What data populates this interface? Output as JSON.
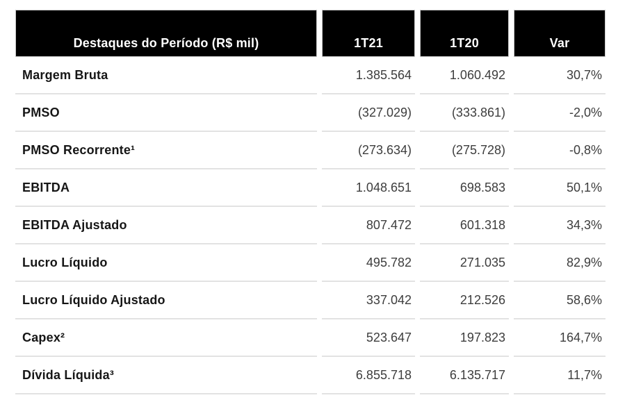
{
  "title": "Destaques do Período (R$ mil)",
  "colors": {
    "header_bg": "#000000",
    "header_text": "#ffffff",
    "label_text": "#161616",
    "value_text": "#3d3d3d",
    "divider": "#e2e2e2",
    "background": "#ffffff"
  },
  "chart_data": {
    "type": "table",
    "title": "Destaques do Período (R$ mil)",
    "columns": [
      "Destaques do Período (R$ mil)",
      "1T21",
      "1T20",
      "Var"
    ],
    "rows": [
      [
        "Margem Bruta",
        "1.385.564",
        "1.060.492",
        "30,7%"
      ],
      [
        "PMSO",
        "(327.029)",
        "(333.861)",
        "-2,0%"
      ],
      [
        "PMSO Recorrente¹",
        "(273.634)",
        "(275.728)",
        "-0,8%"
      ],
      [
        "EBITDA",
        "1.048.651",
        "698.583",
        "50,1%"
      ],
      [
        "EBITDA Ajustado",
        "807.472",
        "601.318",
        "34,3%"
      ],
      [
        "Lucro Líquido",
        "495.782",
        "271.035",
        "82,9%"
      ],
      [
        "Lucro Líquido Ajustado",
        "337.042",
        "212.526",
        "58,6%"
      ],
      [
        "Capex²",
        "523.647",
        "197.823",
        "164,7%"
      ],
      [
        "Dívida Líquida³",
        "6.855.718",
        "6.135.717",
        "11,7%"
      ]
    ],
    "footnote_markers": [
      "¹",
      "²",
      "³"
    ]
  }
}
